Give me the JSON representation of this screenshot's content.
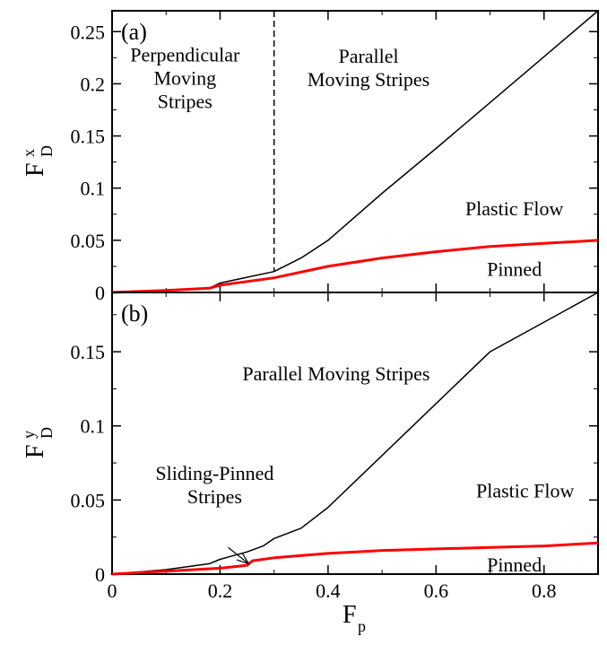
{
  "chart_data": [
    {
      "type": "line",
      "panel_label": "(a)",
      "xlim": [
        0,
        0.9
      ],
      "ylim": [
        0,
        0.27
      ],
      "xticks": [
        0,
        0.2,
        0.4,
        0.6,
        0.8
      ],
      "xtick_labels": [
        "",
        "",
        "",
        "",
        ""
      ],
      "yticks": [
        0,
        0.05,
        0.1,
        0.15,
        0.2,
        0.25
      ],
      "ytick_labels": [
        "0",
        "0.05",
        "0.1",
        "0.15",
        "0.2",
        "0.25"
      ],
      "ylabel": {
        "main": "F",
        "sup": "x",
        "sub": "D"
      },
      "vline": {
        "x": 0.3,
        "style": "dashed"
      },
      "series": [
        {
          "color": "#000000",
          "x": [
            0,
            0.1,
            0.18,
            0.2,
            0.3,
            0.35,
            0.4,
            0.5,
            0.6,
            0.7,
            0.8,
            0.9
          ],
          "y": [
            0,
            0.002,
            0.004,
            0.009,
            0.02,
            0.033,
            0.05,
            0.095,
            0.138,
            0.182,
            0.226,
            0.27
          ]
        },
        {
          "color": "#ff0000",
          "x": [
            0,
            0.1,
            0.18,
            0.2,
            0.3,
            0.4,
            0.5,
            0.6,
            0.7,
            0.8,
            0.9
          ],
          "y": [
            0,
            0.002,
            0.004,
            0.007,
            0.014,
            0.025,
            0.033,
            0.039,
            0.044,
            0.047,
            0.05
          ]
        }
      ],
      "annotations": [
        {
          "lines": [
            "Perpendicular",
            "Moving",
            "Stripes"
          ],
          "x": 0.135,
          "y": 0.205
        },
        {
          "lines": [
            "Parallel",
            "Moving Stripes"
          ],
          "x": 0.475,
          "y": 0.215
        },
        {
          "lines": [
            "Plastic Flow"
          ],
          "x": 0.745,
          "y": 0.08
        },
        {
          "lines": [
            "Pinned"
          ],
          "x": 0.745,
          "y": 0.022
        }
      ]
    },
    {
      "type": "line",
      "panel_label": "(b)",
      "xlim": [
        0,
        0.9
      ],
      "ylim": [
        0,
        0.19
      ],
      "xticks": [
        0,
        0.2,
        0.4,
        0.6,
        0.8
      ],
      "xtick_labels": [
        "0",
        "0.2",
        "0.4",
        "0.6",
        "0.8"
      ],
      "yticks": [
        0,
        0.05,
        0.1,
        0.15
      ],
      "ytick_labels": [
        "0",
        "0.05",
        "0.1",
        "0.15"
      ],
      "xlabel": {
        "main": "F",
        "sub": "p"
      },
      "ylabel": {
        "main": "F",
        "sup": "y",
        "sub": "D"
      },
      "series": [
        {
          "color": "#000000",
          "x": [
            0,
            0.1,
            0.18,
            0.2,
            0.25,
            0.28,
            0.3,
            0.35,
            0.4,
            0.5,
            0.6,
            0.7,
            0.8,
            0.9
          ],
          "y": [
            0,
            0.003,
            0.007,
            0.01,
            0.015,
            0.019,
            0.024,
            0.031,
            0.045,
            0.08,
            0.115,
            0.15,
            0.17,
            0.19
          ]
        },
        {
          "color": "#ff0000",
          "x": [
            0,
            0.05,
            0.1,
            0.2,
            0.25,
            0.26,
            0.3,
            0.4,
            0.5,
            0.6,
            0.7,
            0.8,
            0.9
          ],
          "y": [
            0,
            0.001,
            0.002,
            0.004,
            0.006,
            0.009,
            0.011,
            0.014,
            0.016,
            0.017,
            0.018,
            0.019,
            0.021
          ]
        }
      ],
      "annotations": [
        {
          "lines": [
            "Parallel Moving Stripes"
          ],
          "x": 0.415,
          "y": 0.135
        },
        {
          "lines": [
            "Sliding-Pinned",
            "Stripes"
          ],
          "x": 0.19,
          "y": 0.06
        },
        {
          "lines": [
            "Plastic Flow"
          ],
          "x": 0.765,
          "y": 0.056
        },
        {
          "lines": [
            "Pinned"
          ],
          "x": 0.745,
          "y": 0.006
        }
      ],
      "arrow": {
        "from": [
          0.215,
          0.018
        ],
        "to": [
          0.253,
          0.007
        ]
      }
    }
  ]
}
